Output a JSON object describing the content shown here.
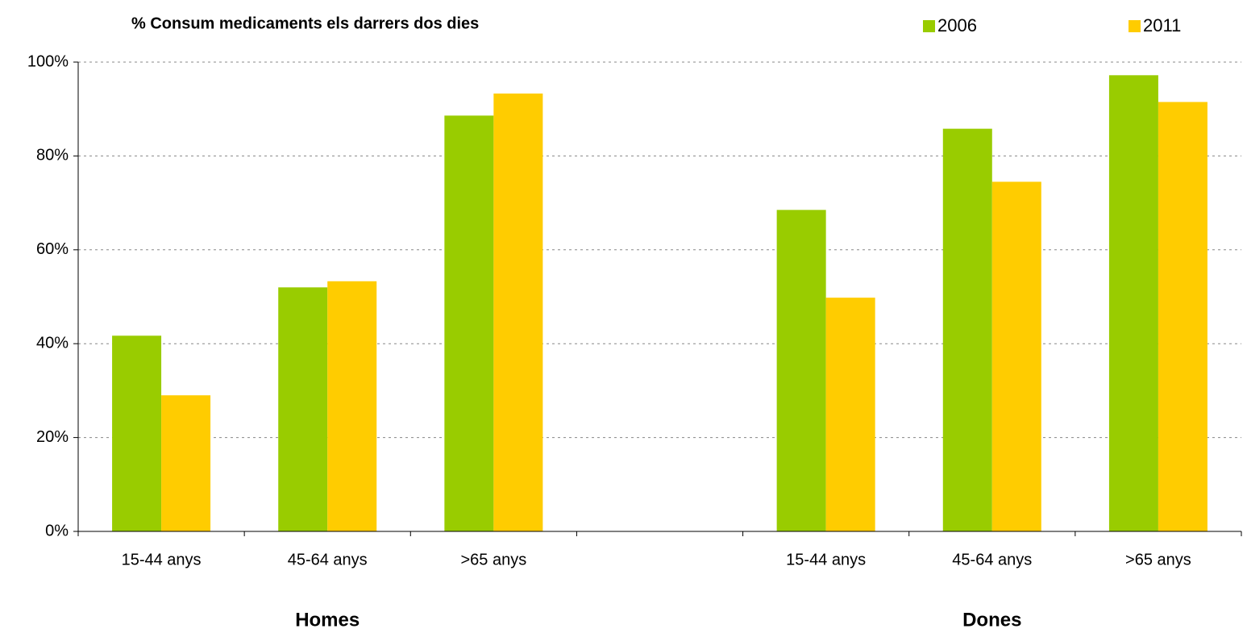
{
  "chart_data": {
    "type": "bar",
    "title": "% Consum medicaments els darrers dos dies",
    "categories": [
      "15-44 anys",
      "45-64 anys",
      ">65 anys",
      null,
      "15-44 anys",
      "45-64 anys",
      ">65 anys"
    ],
    "group_labels": [
      "Homes",
      "Dones"
    ],
    "series": [
      {
        "name": "2006",
        "color": "#99cc00",
        "values": [
          41.7,
          52,
          88.6,
          null,
          68.5,
          85.8,
          97.2
        ]
      },
      {
        "name": "2011",
        "color": "#ffcc00",
        "values": [
          29,
          53.3,
          93.3,
          null,
          49.8,
          74.5,
          91.5
        ]
      }
    ],
    "ylim": [
      0,
      100
    ],
    "yticks": [
      {
        "value": 0,
        "label": "0%"
      },
      {
        "value": 20,
        "label": "20%"
      },
      {
        "value": 40,
        "label": "40%"
      },
      {
        "value": 60,
        "label": "60%"
      },
      {
        "value": 80,
        "label": "80%"
      },
      {
        "value": 100,
        "label": "100%"
      }
    ],
    "grid": true,
    "legend": "top-right"
  }
}
